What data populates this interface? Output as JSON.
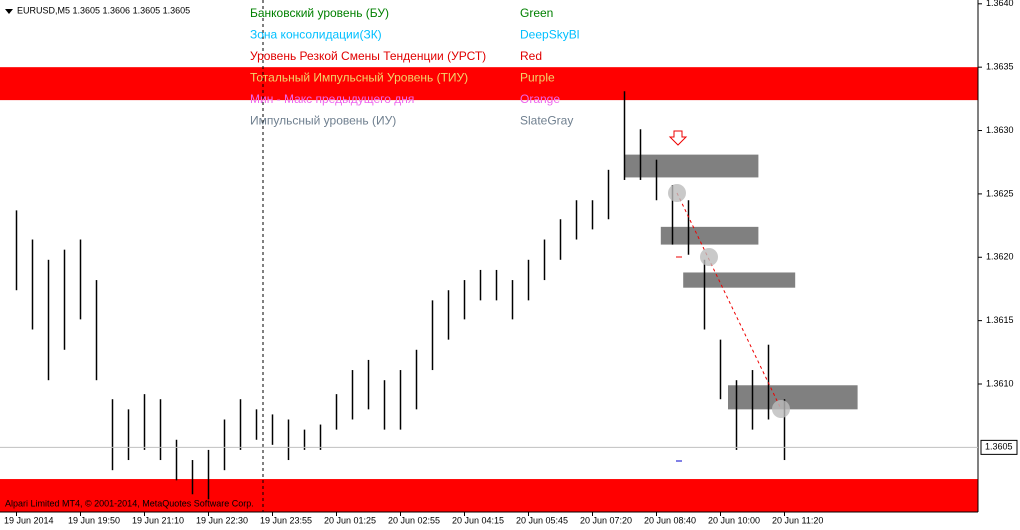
{
  "header": "EURUSD,M5  1.3605 1.3606 1.3605 1.3605",
  "footer": "Alpari Limited MT4, © 2001-2014, MetaQuotes Software Corp.",
  "legend": [
    {
      "label": "Банковский уровень (БУ)",
      "color_name": "Green",
      "color": "#008000"
    },
    {
      "label": "Зона консолидации(ЗК)",
      "color_name": "DeepSkyBl",
      "color": "#00bfff"
    },
    {
      "label": "Уровень Резкой Смены Тенденции (УРСТ)",
      "color_name": "Red",
      "color": "#e00000"
    },
    {
      "label": "Тотальный Импульсный Уровень (ТИУ)",
      "color_name": "Purple",
      "color": "#f2d36b"
    },
    {
      "label": "Мин - Макс предыдущего дня",
      "color_name": "Orange",
      "color": "#ee66ee"
    },
    {
      "label": "Импульсный уровень (ИУ)",
      "color_name": "SlateGray",
      "color": "#708090"
    }
  ],
  "chart_data": {
    "type": "hilo",
    "categories": [
      "19 Jun 2014",
      null,
      null,
      null,
      "19 Jun 19:50",
      null,
      null,
      null,
      "19 Jun 21:10",
      null,
      null,
      null,
      "19 Jun 22:30",
      null,
      null,
      null,
      "19 Jun 23:55",
      null,
      null,
      null,
      "20 Jun 01:25",
      null,
      null,
      null,
      "20 Jun 02:55",
      null,
      null,
      null,
      "20 Jun 04:15",
      null,
      null,
      null,
      "20 Jun 05:45",
      null,
      null,
      null,
      "20 Jun 07:20",
      null,
      null,
      null,
      "20 Jun 08:40",
      null,
      null,
      null,
      "20 Jun 10:00",
      null,
      null,
      null,
      "20 Jun 11:20"
    ],
    "high": [
      1.36237,
      1.36214,
      1.36198,
      1.36206,
      1.36214,
      1.36182,
      1.36088,
      1.3608,
      1.36092,
      1.36088,
      1.36056,
      1.3604,
      1.36048,
      1.36072,
      1.36088,
      1.3608,
      1.36076,
      1.36072,
      1.36064,
      1.36068,
      1.36092,
      1.36111,
      1.36119,
      1.36103,
      1.36111,
      1.36127,
      1.36166,
      1.36174,
      1.36182,
      1.3619,
      1.3619,
      1.36182,
      1.36198,
      1.36214,
      1.3623,
      1.36245,
      1.36245,
      1.36269,
      1.36331,
      1.36301,
      1.36277,
      1.36257,
      1.36245,
      1.36198,
      1.36135,
      1.36103,
      1.36111,
      1.36131,
      1.36088
    ],
    "low": [
      1.36174,
      1.36143,
      1.36103,
      1.36127,
      1.36151,
      1.36103,
      1.36032,
      1.3604,
      1.36048,
      1.3604,
      1.36024,
      1.36013,
      1.36009,
      1.36032,
      1.36048,
      1.36056,
      1.36052,
      1.3604,
      1.36048,
      1.36048,
      1.36064,
      1.36072,
      1.3608,
      1.36064,
      1.36064,
      1.3608,
      1.36111,
      1.36135,
      1.36151,
      1.36166,
      1.36166,
      1.36151,
      1.36166,
      1.36182,
      1.36198,
      1.36214,
      1.36222,
      1.3623,
      1.36261,
      1.36261,
      1.36245,
      1.3621,
      1.36202,
      1.36143,
      1.36088,
      1.36048,
      1.36064,
      1.36072,
      1.3604
    ],
    "color": "#000000",
    "ylim": [
      1.35999,
      1.36403
    ],
    "yticks": [
      {
        "value": 1.364,
        "label": "1.3640"
      },
      {
        "value": 1.3635,
        "label": "1.3635"
      },
      {
        "value": 1.363,
        "label": "1.3630"
      },
      {
        "value": 1.3625,
        "label": "1.3625"
      },
      {
        "value": 1.362,
        "label": "1.3620"
      },
      {
        "value": 1.3615,
        "label": "1.3615"
      },
      {
        "value": 1.361,
        "label": "1.3610"
      }
    ],
    "current_price": {
      "value": 1.3605,
      "label": "1.3605"
    },
    "bands": [
      {
        "low": 1.36324,
        "high": 1.3635,
        "color": "#ff0000"
      },
      {
        "low": 1.35999,
        "high": 1.36025,
        "color": "#ff0000"
      }
    ],
    "zones": [
      {
        "from": 38,
        "to": 46.4,
        "low": 1.36263,
        "high": 1.36281,
        "color": "#808080"
      },
      {
        "from": 40.3,
        "to": 46.4,
        "low": 1.3621,
        "high": 1.36224,
        "color": "#808080"
      },
      {
        "from": 41.7,
        "to": 48.7,
        "low": 1.36176,
        "high": 1.36188,
        "color": "#808080"
      },
      {
        "from": 44.5,
        "to": 52.6,
        "low": 1.3608,
        "high": 1.36099,
        "color": "#808080"
      }
    ]
  }
}
